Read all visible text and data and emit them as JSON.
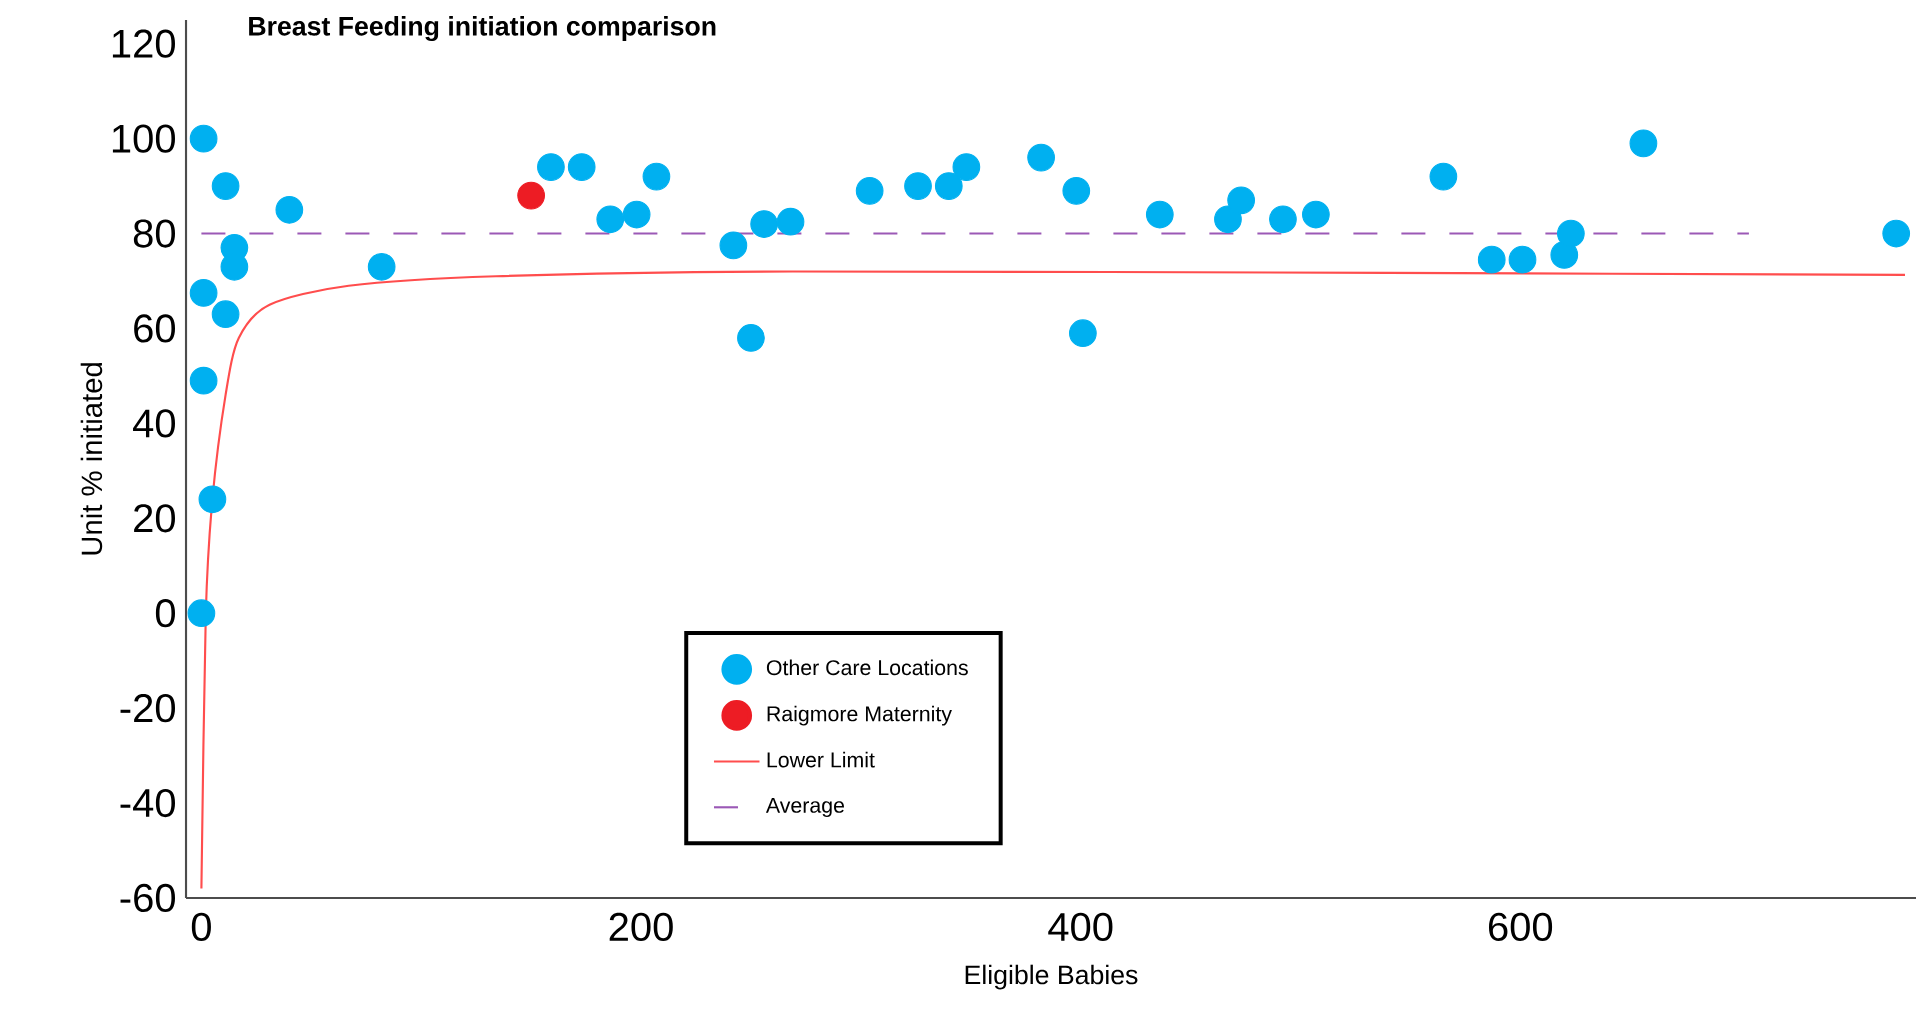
{
  "chart_data": {
    "type": "scatter",
    "title": "Breast Feeding initiation comparison",
    "xlabel": "Eligible Babies",
    "ylabel": "Unit % initiated",
    "xlim": [
      -7,
      780
    ],
    "ylim": [
      -60,
      125
    ],
    "xticks": [
      0,
      200,
      400,
      600
    ],
    "yticks": [
      -60,
      -40,
      -20,
      0,
      20,
      40,
      60,
      80,
      100,
      120
    ],
    "legend": "bottom",
    "series": [
      {
        "name": "Other Care Locations",
        "color": "#00b0f0",
        "marker": "circle",
        "x": [
          0,
          1,
          1,
          1,
          5,
          11,
          11,
          15,
          15,
          40,
          82,
          159,
          173,
          186,
          198,
          207,
          242,
          250,
          256,
          268,
          304,
          326,
          340,
          348,
          382,
          398,
          401,
          436,
          467,
          473,
          492,
          507,
          565,
          587,
          601,
          620,
          623,
          656,
          771
        ],
        "values": [
          0,
          100,
          67.5,
          49,
          24,
          90,
          63,
          77,
          73,
          85,
          73,
          94,
          94,
          83,
          84,
          92,
          77.5,
          58,
          82,
          82.5,
          89,
          90,
          90,
          94,
          96,
          89,
          59,
          84,
          83,
          87,
          83,
          84,
          92,
          74.5,
          74.5,
          75.5,
          80,
          99,
          80
        ]
      },
      {
        "name": "Raigmore Maternity",
        "color": "#ed1c24",
        "marker": "circle",
        "x": [
          150
        ],
        "values": [
          88
        ]
      },
      {
        "name": "Lower Limit",
        "type": "line",
        "color": "#ff4d4d",
        "marker": "none",
        "x": [
          0,
          2,
          5,
          11,
          17,
          31,
          67,
          134,
          269,
          540,
          775
        ],
        "values": [
          -58,
          0,
          24,
          46,
          58,
          65,
          69,
          71,
          72,
          71.7,
          71.3
        ]
      },
      {
        "name": "Average",
        "type": "line",
        "color": "#9b59b6",
        "line_style": "dashed",
        "marker": "none",
        "x": [
          0,
          704
        ],
        "values": [
          80,
          80
        ]
      }
    ]
  }
}
